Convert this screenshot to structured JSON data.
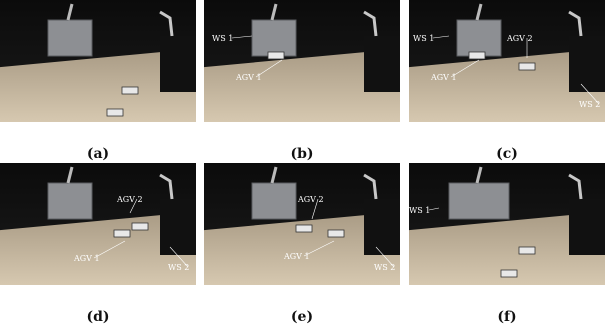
{
  "panels": [
    {
      "caption": "(a)",
      "labels": []
    },
    {
      "caption": "(b)",
      "labels": [
        "WS 1",
        "AGV 1"
      ]
    },
    {
      "caption": "(c)",
      "labels": [
        "WS 1",
        "AGV 1",
        "AGV 2",
        "WS 2"
      ]
    },
    {
      "caption": "(d)",
      "labels": [
        "AGV 2",
        "AGV 1",
        "WS 2"
      ]
    },
    {
      "caption": "(e)",
      "labels": [
        "AGV 2",
        "AGV 1",
        "WS 2"
      ]
    },
    {
      "caption": "(f)",
      "labels": [
        "WS 1"
      ]
    }
  ]
}
